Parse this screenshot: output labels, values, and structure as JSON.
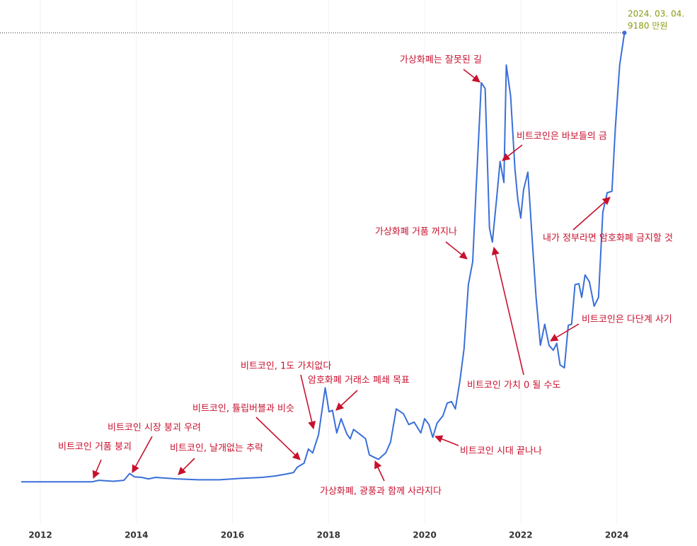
{
  "chart_data": {
    "type": "line",
    "color": "#3a6fd8",
    "x": [
      2011.6,
      2013.08,
      2013.22,
      2013.52,
      2013.74,
      2013.86,
      2013.96,
      2014.11,
      2014.25,
      2014.4,
      2014.84,
      2015.28,
      2015.73,
      2016.17,
      2016.61,
      2016.9,
      2017.13,
      2017.27,
      2017.35,
      2017.49,
      2017.58,
      2017.67,
      2017.79,
      2017.93,
      2018.01,
      2018.08,
      2018.17,
      2018.26,
      2018.38,
      2018.45,
      2018.52,
      2018.67,
      2018.77,
      2018.85,
      2018.97,
      2019.04,
      2019.19,
      2019.29,
      2019.41,
      2019.56,
      2019.67,
      2019.78,
      2019.92,
      2020.0,
      2020.09,
      2020.17,
      2020.26,
      2020.38,
      2020.47,
      2020.56,
      2020.64,
      2020.73,
      2020.82,
      2020.91,
      2021.0,
      2021.07,
      2021.18,
      2021.26,
      2021.35,
      2021.41,
      2021.5,
      2021.57,
      2021.65,
      2021.7,
      2021.79,
      2021.88,
      2021.94,
      2022.0,
      2022.06,
      2022.15,
      2022.24,
      2022.32,
      2022.41,
      2022.5,
      2022.59,
      2022.68,
      2022.75,
      2022.82,
      2022.91,
      2022.99,
      2023.06,
      2023.13,
      2023.21,
      2023.27,
      2023.34,
      2023.43,
      2023.53,
      2023.62,
      2023.71,
      2023.8,
      2023.9,
      2023.97,
      2024.06,
      2024.16
    ],
    "values": [
      0,
      0,
      30,
      10,
      30,
      170,
      100,
      90,
      60,
      90,
      60,
      40,
      40,
      70,
      90,
      120,
      160,
      190,
      300,
      380,
      670,
      590,
      960,
      1920,
      1430,
      1460,
      1000,
      1290,
      980,
      880,
      1070,
      960,
      880,
      550,
      490,
      460,
      590,
      810,
      1490,
      1390,
      1170,
      1220,
      1000,
      1290,
      1170,
      910,
      1200,
      1350,
      1610,
      1640,
      1490,
      2040,
      2720,
      4030,
      4500,
      5940,
      8160,
      8040,
      5190,
      4900,
      5800,
      6550,
      6120,
      8520,
      7890,
      6400,
      5770,
      5390,
      5970,
      6330,
      4930,
      3770,
      2790,
      3220,
      2790,
      2690,
      2830,
      2390,
      2330,
      3200,
      3220,
      4030,
      4050,
      3770,
      4230,
      4090,
      3590,
      3770,
      5510,
      5910,
      5940,
      7240,
      8520,
      9180
    ],
    "xlim": [
      2011.16,
      2025.67
    ],
    "ylim": [
      -850,
      9850
    ],
    "xticks": [
      2012,
      2014,
      2016,
      2018,
      2020,
      2022,
      2024
    ],
    "peak_label": {
      "date": "2024. 03. 04.",
      "value_label": "9180 만원"
    },
    "annotations": [
      "비트코인 거품 붕괴",
      "비트코인 시장 붕괴 우려",
      "비트코인, 날개없는 추락",
      "비트코인, 튤립버블과 비슷",
      "비트코인, 1도 가치없다",
      "암호화폐 거래소 폐쇄 목표",
      "가상화폐, 광풍과 함께 사라지다",
      "비트코인 시대 끝나나",
      "비트코인 가치 0 될 수도",
      "가상화폐 거품 꺼지나",
      "가상화폐는 잘못된 길",
      "비트코인은 바보들의 금",
      "내가 정부라면 암호화폐 금지할 것",
      "비트코인은 다단계 사기"
    ]
  }
}
